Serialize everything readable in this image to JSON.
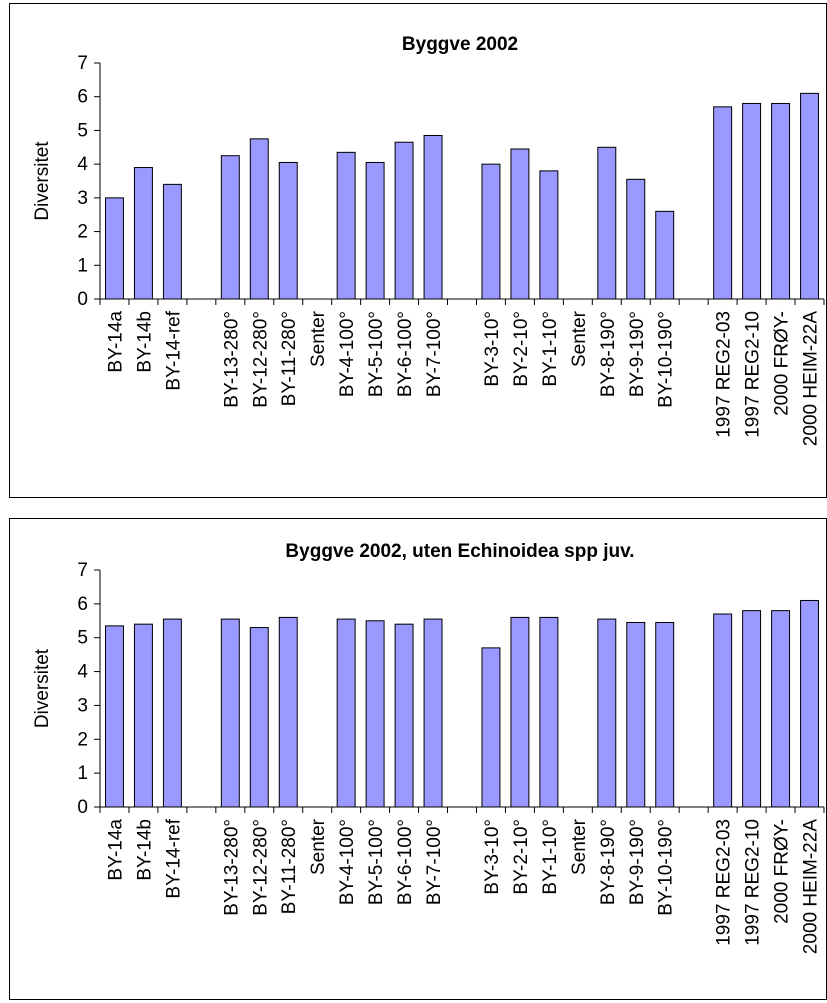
{
  "chart_data": [
    {
      "type": "bar",
      "title": "Byggve 2002",
      "xlabel": "",
      "ylabel": "Diversitet",
      "ylim": [
        0,
        7
      ],
      "yticks": [
        "0",
        "1",
        "2",
        "3",
        "4",
        "5",
        "6",
        "7"
      ],
      "categories": [
        "BY-14a",
        "BY-14b",
        "BY-14-ref",
        "",
        "BY-13-280°",
        "BY-12-280°",
        "BY-11-280°",
        "Senter",
        "BY-4-100°",
        "BY-5-100°",
        "BY-6-100°",
        "BY-7-100°",
        "",
        "BY-3-10°",
        "BY-2-10°",
        "BY-1-10°",
        "Senter",
        "BY-8-190°",
        "BY-9-190°",
        "BY-10-190°",
        "",
        "1997 REG2-03",
        "1997 REG2-10",
        "2000 FRØY-",
        "2000 HEIM-22A"
      ],
      "values": [
        3.0,
        3.9,
        3.4,
        null,
        4.25,
        4.75,
        4.05,
        null,
        4.35,
        4.05,
        4.65,
        4.85,
        null,
        4.0,
        4.45,
        3.8,
        null,
        4.5,
        3.55,
        2.6,
        null,
        5.7,
        5.8,
        5.8,
        6.1
      ],
      "bar_color": "#9999ff",
      "grid": false,
      "legend": "none"
    },
    {
      "type": "bar",
      "title": "Byggve 2002, uten Echinoidea spp juv.",
      "xlabel": "",
      "ylabel": "Diversitet",
      "ylim": [
        0,
        7
      ],
      "yticks": [
        "0",
        "1",
        "2",
        "3",
        "4",
        "5",
        "6",
        "7"
      ],
      "categories": [
        "BY-14a",
        "BY-14b",
        "BY-14-ref",
        "",
        "BY-13-280°",
        "BY-12-280°",
        "BY-11-280°",
        "Senter",
        "BY-4-100°",
        "BY-5-100°",
        "BY-6-100°",
        "BY-7-100°",
        "",
        "BY-3-10°",
        "BY-2-10°",
        "BY-1-10°",
        "Senter",
        "BY-8-190°",
        "BY-9-190°",
        "BY-10-190°",
        "",
        "1997 REG2-03",
        "1997 REG2-10",
        "2000 FRØY-",
        "2000 HEIM-22A"
      ],
      "values": [
        5.35,
        5.4,
        5.55,
        null,
        5.55,
        5.3,
        5.6,
        null,
        5.55,
        5.5,
        5.4,
        5.55,
        null,
        4.7,
        5.6,
        5.6,
        null,
        5.55,
        5.45,
        5.45,
        null,
        5.7,
        5.8,
        5.8,
        6.1
      ],
      "bar_color": "#9999ff",
      "grid": false,
      "legend": "none"
    }
  ]
}
